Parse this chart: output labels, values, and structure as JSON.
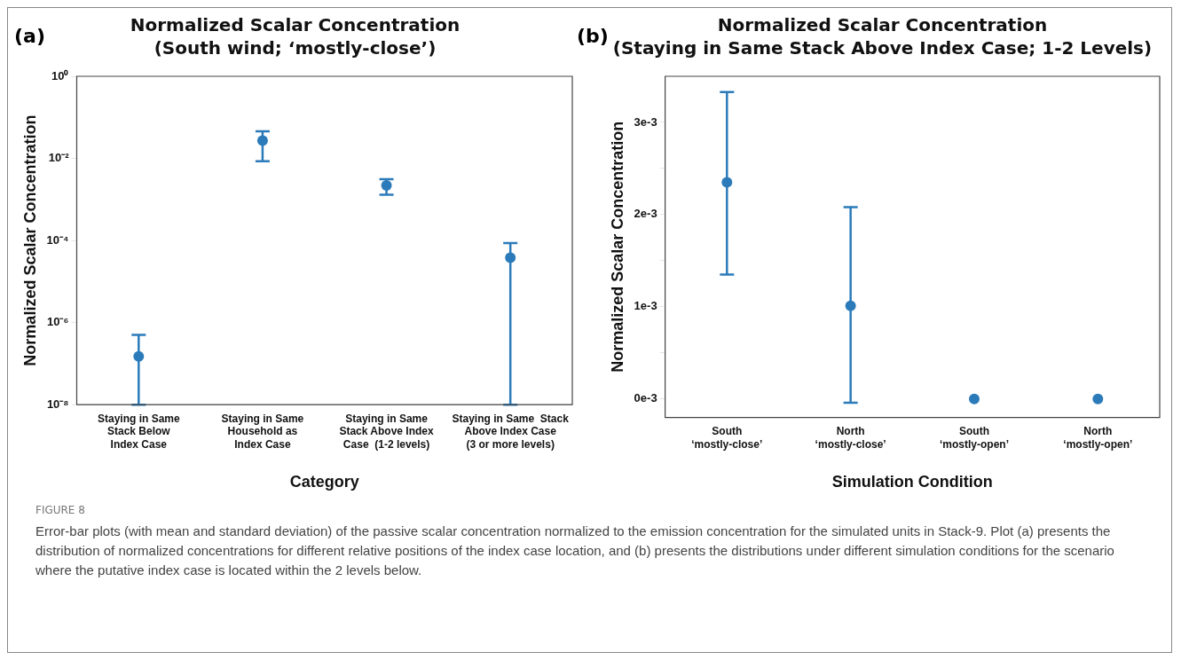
{
  "chart_data": [
    {
      "type": "scatter",
      "title": "Normalized Scalar Concentration",
      "subtitle": "(South wind; ‘mostly-close’)",
      "xlabel": "Category",
      "ylabel": "Normalized Scalar Concentration",
      "categories": [
        "Staying in Same\nStack Below\nIndex Case",
        "Staying in Same\nHousehold as\nIndex Case",
        "Staying in Same\nStack Above Index\nCase  (1-2 levels)",
        "Staying in Same  Stack\nAbove Index Case\n(3 or more levels)"
      ],
      "values": [
        1.5e-07,
        0.027,
        0.0022,
        3.8e-05
      ],
      "errors": [
        [
          1e-08,
          5e-07
        ],
        [
          0.0085,
          0.046
        ],
        [
          0.0013,
          0.0031
        ],
        [
          1e-08,
          8.7e-05
        ]
      ],
      "color": "#2b7bba",
      "marker": "circle",
      "log": "y",
      "ylim": [
        1e-08,
        1
      ],
      "yticks": [
        {
          "value": 1e-08,
          "label": "10⁻⁸"
        },
        {
          "value": 1e-06,
          "label": "10⁻⁶"
        },
        {
          "value": 0.0001,
          "label": "10⁻⁴"
        },
        {
          "value": 0.01,
          "label": "10⁻²"
        },
        {
          "value": 1,
          "label": "10⁰"
        }
      ],
      "annotations": [
        "(a)",
        "FIGURE 8",
        "Error-bar plots (with mean and standard deviation) of the passive scalar concentration normalized to the emission concentration for the simulated units in Stack-9. Plot (a) presents the distribution of normalized concentrations for different relative positions of the index case location, and (b) presents the distributions under different simulation conditions for the scenario where the putative index case is located within the 2 levels below."
      ]
    },
    {
      "type": "scatter",
      "title": "Normalized Scalar Concentration",
      "subtitle": "(Staying in Same Stack Above Index Case; 1-2 Levels)",
      "xlabel": "Simulation Condition",
      "ylabel": "Normalized Scalar Concentration",
      "categories": [
        "South\n‘mostly-close’",
        "North\n‘mostly-close’",
        "South\n‘mostly-open’",
        "North\n‘mostly-open’"
      ],
      "values": [
        0.00235,
        0.00101,
        0,
        0
      ],
      "errors": [
        [
          0.00135,
          0.00333
        ],
        [
          -4e-05,
          0.00208
        ],
        null,
        null
      ],
      "color": "#2b7bba",
      "marker": "circle",
      "ylim": [
        -0.0002,
        0.0035
      ],
      "yticks": [
        {
          "value": 0,
          "label": "0e-3"
        },
        {
          "value": 0.0005,
          "label": null
        },
        {
          "value": 0.001,
          "label": "1e-3"
        },
        {
          "value": 0.0015,
          "label": null
        },
        {
          "value": 0.002,
          "label": "2e-3"
        },
        {
          "value": 0.0025,
          "label": null
        },
        {
          "value": 0.003,
          "label": "3e-3"
        }
      ],
      "annotations": [
        "(b)"
      ]
    }
  ]
}
